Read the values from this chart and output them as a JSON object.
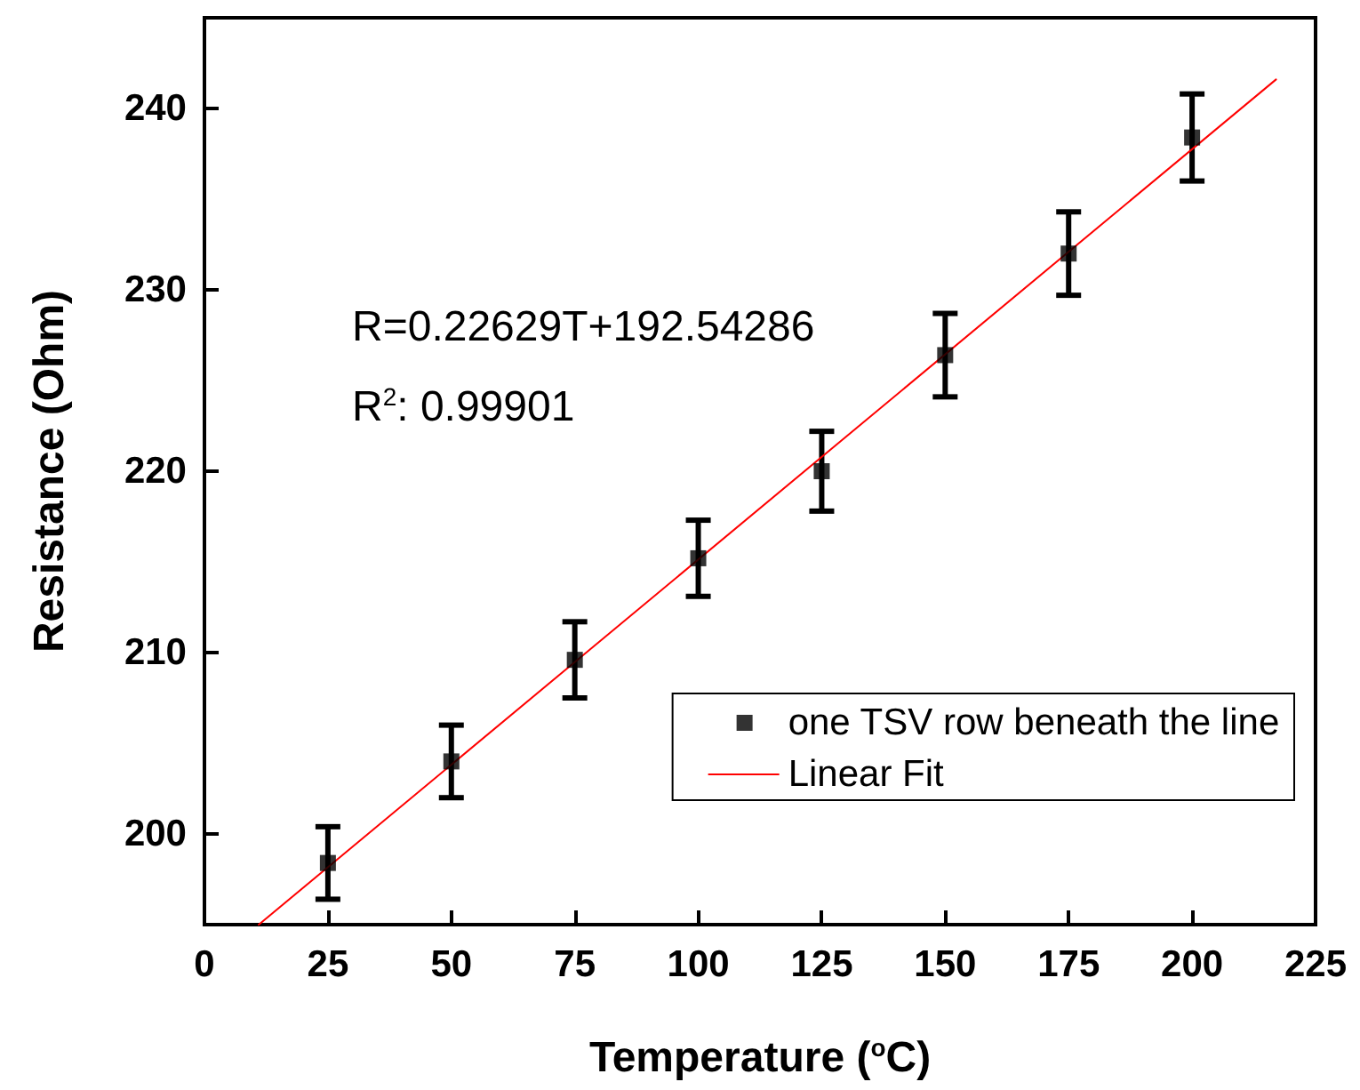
{
  "chart_data": {
    "type": "scatter",
    "xlabel": "Temperature ($^{o}$C)",
    "ylabel": "Resistance (Ohm)",
    "annotations": [
      "R=0.22629T+192.54286",
      "R$^{2}$: 0.99901"
    ],
    "xlim": [
      0,
      225
    ],
    "xticks": [
      0,
      25,
      50,
      75,
      100,
      125,
      150,
      175,
      200,
      225
    ],
    "ylim": [
      195,
      245
    ],
    "yticks": [
      200,
      210,
      220,
      230,
      240
    ],
    "grid": false,
    "legend": "bottom right",
    "series": [
      {
        "name": "one TSV row beneath the line",
        "color": "#000000",
        "marker": "square",
        "x": [
          25,
          50,
          75,
          100,
          125,
          150,
          175,
          200
        ],
        "values": [
          198.4,
          204.0,
          209.6,
          215.2,
          220.0,
          226.4,
          232.0,
          238.4
        ],
        "errors": [
          2.0,
          2.0,
          2.1,
          2.1,
          2.2,
          2.3,
          2.3,
          2.4
        ]
      },
      {
        "name": "Linear Fit",
        "type": "line",
        "color": "#ff0000",
        "marker": "none",
        "line_style": "solid",
        "x": [
          11,
          217
        ],
        "values": [
          195.0,
          241.6
        ]
      }
    ]
  }
}
